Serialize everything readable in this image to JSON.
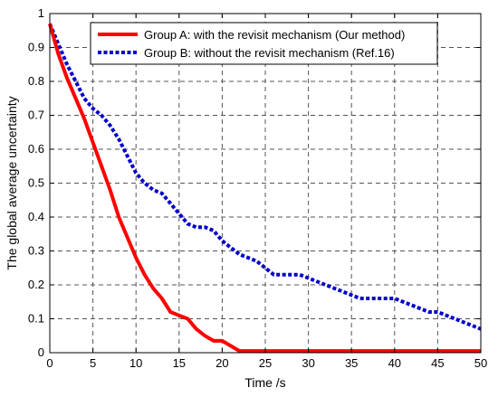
{
  "chart_data": {
    "type": "line",
    "xlabel": "Time /s",
    "ylabel": "The global average uncertainty",
    "xlim": [
      0,
      50
    ],
    "ylim": [
      0,
      1
    ],
    "xticks": [
      0,
      5,
      10,
      15,
      20,
      25,
      30,
      35,
      40,
      45,
      50
    ],
    "yticks": [
      0,
      0.1,
      0.2,
      0.3,
      0.4,
      0.5,
      0.6,
      0.7,
      0.8,
      0.9,
      1
    ],
    "grid": true,
    "legend_position": "top-right",
    "series": [
      {
        "name": "Group A: with the revisit mechanism (Our method)",
        "color": "#ff0000",
        "style": "solid",
        "x": [
          0,
          1,
          2,
          3,
          4,
          5,
          6,
          7,
          8,
          9,
          10,
          11,
          12,
          13,
          14,
          15,
          16,
          17,
          18,
          19,
          20,
          21,
          22,
          23,
          24,
          25,
          30,
          35,
          40,
          45,
          50
        ],
        "y": [
          0.97,
          0.88,
          0.81,
          0.75,
          0.69,
          0.62,
          0.55,
          0.48,
          0.4,
          0.34,
          0.28,
          0.23,
          0.19,
          0.16,
          0.12,
          0.11,
          0.1,
          0.07,
          0.05,
          0.035,
          0.035,
          0.02,
          0.005,
          0.005,
          0.005,
          0.005,
          0.005,
          0.005,
          0.005,
          0.005,
          0.005
        ]
      },
      {
        "name": "Group B: without the revisit mechanism (Ref.16)",
        "color": "#0000cc",
        "style": "dotted",
        "x": [
          0,
          1,
          2,
          3,
          4,
          5,
          6,
          7,
          8,
          9,
          10,
          11,
          12,
          13,
          14,
          15,
          16,
          17,
          18,
          19,
          20,
          21,
          22,
          23,
          24,
          25,
          26,
          27,
          28,
          29,
          30,
          31,
          32,
          33,
          34,
          35,
          36,
          37,
          38,
          39,
          40,
          41,
          42,
          43,
          44,
          45,
          46,
          47,
          48,
          49,
          50
        ],
        "y": [
          0.97,
          0.91,
          0.85,
          0.8,
          0.75,
          0.72,
          0.7,
          0.67,
          0.63,
          0.58,
          0.53,
          0.5,
          0.48,
          0.47,
          0.44,
          0.41,
          0.38,
          0.37,
          0.37,
          0.36,
          0.33,
          0.31,
          0.29,
          0.28,
          0.27,
          0.25,
          0.23,
          0.23,
          0.23,
          0.23,
          0.22,
          0.21,
          0.2,
          0.19,
          0.18,
          0.17,
          0.16,
          0.16,
          0.16,
          0.16,
          0.16,
          0.15,
          0.14,
          0.13,
          0.12,
          0.12,
          0.11,
          0.1,
          0.09,
          0.08,
          0.07
        ]
      }
    ]
  }
}
